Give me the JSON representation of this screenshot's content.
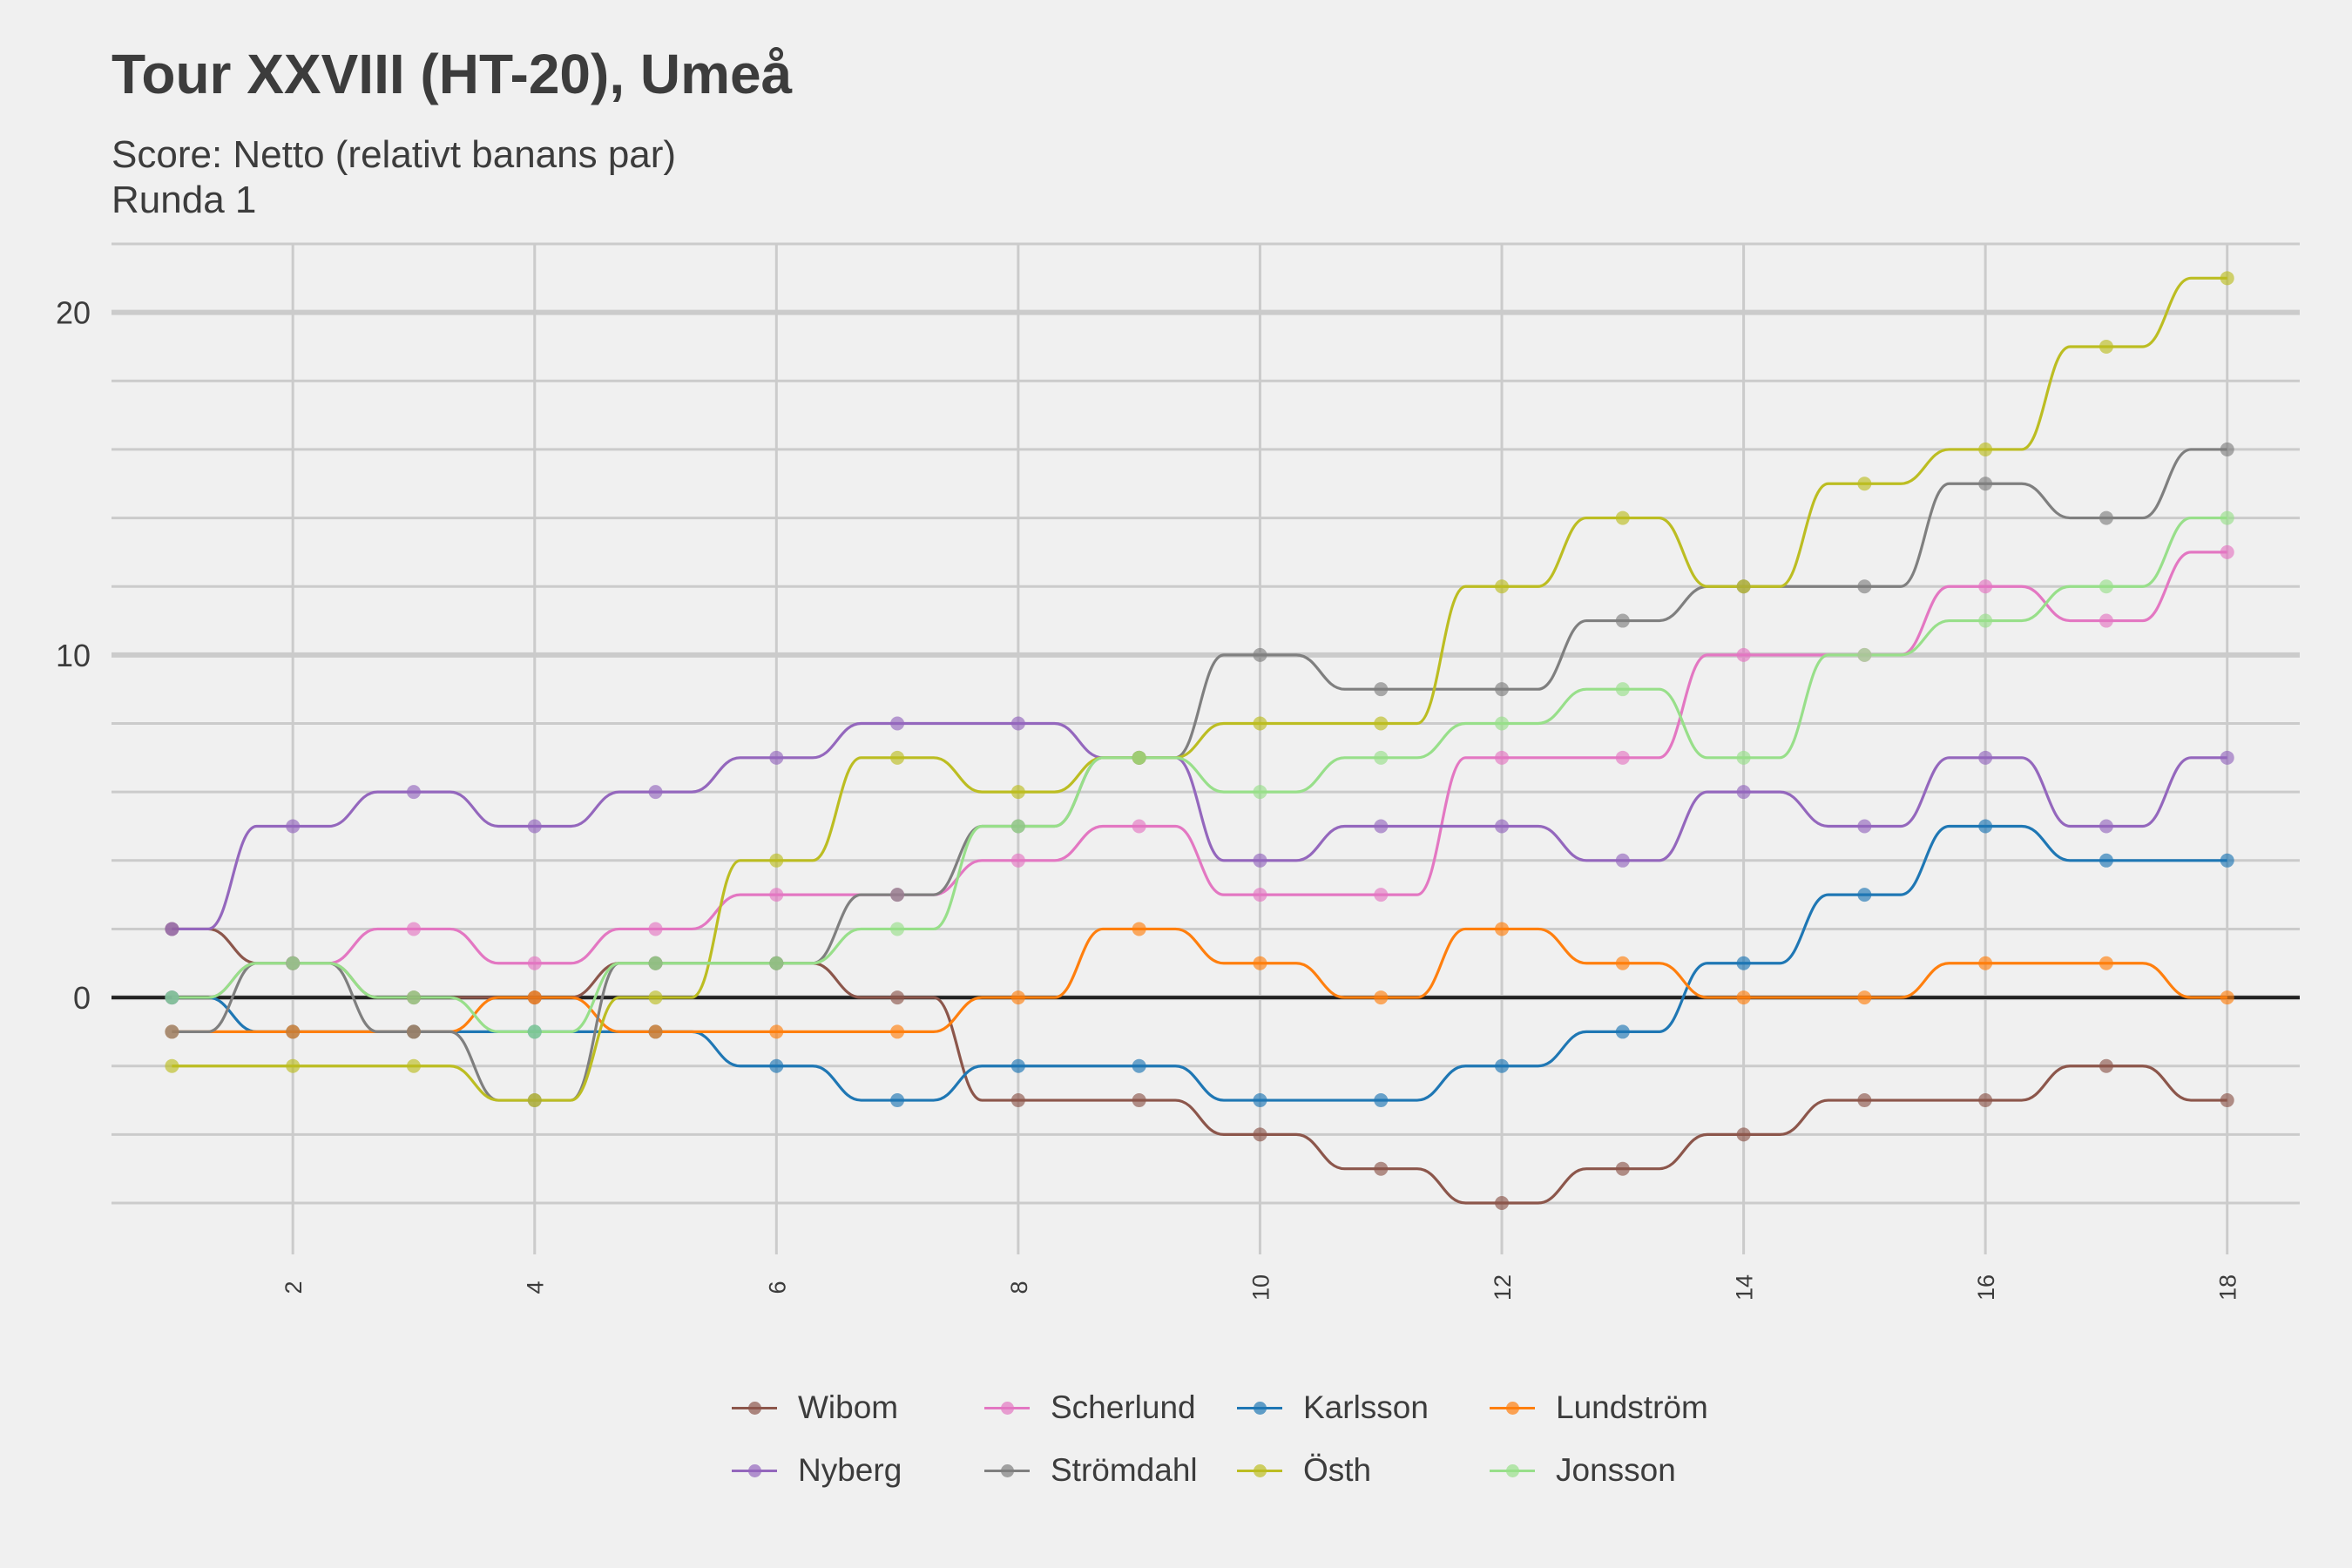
{
  "title": "Tour XXVIII (HT-20), Umeå",
  "subtitle_line1": "Score: Netto (relativt banans par)",
  "subtitle_line2": "Runda 1",
  "chart_data": {
    "type": "line",
    "x": [
      1,
      2,
      3,
      4,
      5,
      6,
      7,
      8,
      9,
      10,
      11,
      12,
      13,
      14,
      15,
      16,
      17,
      18
    ],
    "xticks": [
      2,
      4,
      6,
      8,
      10,
      12,
      14,
      16,
      18
    ],
    "yticks": [
      0,
      10,
      20
    ],
    "xlim": [
      0.5,
      18.6
    ],
    "ylim": [
      -7.5,
      22
    ],
    "xlabel": "",
    "ylabel": "",
    "grid": true,
    "legend_position": "bottom",
    "series": [
      {
        "name": "Wibom",
        "color": "#8c564b",
        "values": [
          2,
          1,
          0,
          0,
          1,
          1,
          0,
          -3,
          -3,
          -4,
          -5,
          -6,
          -5,
          -4,
          -3,
          -3,
          -2,
          -3
        ]
      },
      {
        "name": "Scherlund",
        "color": "#e377c2",
        "values": [
          0,
          1,
          2,
          1,
          2,
          3,
          3,
          4,
          5,
          3,
          3,
          7,
          7,
          10,
          10,
          12,
          11,
          13
        ]
      },
      {
        "name": "Karlsson",
        "color": "#1f77b4",
        "values": [
          0,
          -1,
          -1,
          -1,
          -1,
          -2,
          -3,
          -2,
          -2,
          -3,
          -3,
          -2,
          -1,
          1,
          3,
          5,
          4,
          4
        ]
      },
      {
        "name": "Lundström",
        "color": "#ff7f0e",
        "values": [
          -1,
          -1,
          -1,
          0,
          -1,
          -1,
          -1,
          0,
          2,
          1,
          0,
          2,
          1,
          0,
          0,
          1,
          1,
          0
        ]
      },
      {
        "name": "Nyberg",
        "color": "#9467bd",
        "values": [
          2,
          5,
          6,
          5,
          6,
          7,
          8,
          8,
          7,
          4,
          5,
          5,
          4,
          6,
          5,
          7,
          5,
          7
        ]
      },
      {
        "name": "Strömdahl",
        "color": "#7f7f7f",
        "values": [
          -1,
          1,
          -1,
          -3,
          1,
          1,
          3,
          5,
          7,
          10,
          9,
          9,
          11,
          12,
          12,
          15,
          14,
          16
        ]
      },
      {
        "name": "Östh",
        "color": "#bcbd22",
        "values": [
          -2,
          -2,
          -2,
          -3,
          0,
          4,
          7,
          6,
          7,
          8,
          8,
          12,
          14,
          12,
          15,
          16,
          19,
          21
        ]
      },
      {
        "name": "Jonsson",
        "color": "#98df8a",
        "values": [
          0,
          1,
          0,
          -1,
          1,
          1,
          2,
          5,
          7,
          6,
          7,
          8,
          9,
          7,
          10,
          11,
          12,
          14
        ]
      }
    ]
  }
}
